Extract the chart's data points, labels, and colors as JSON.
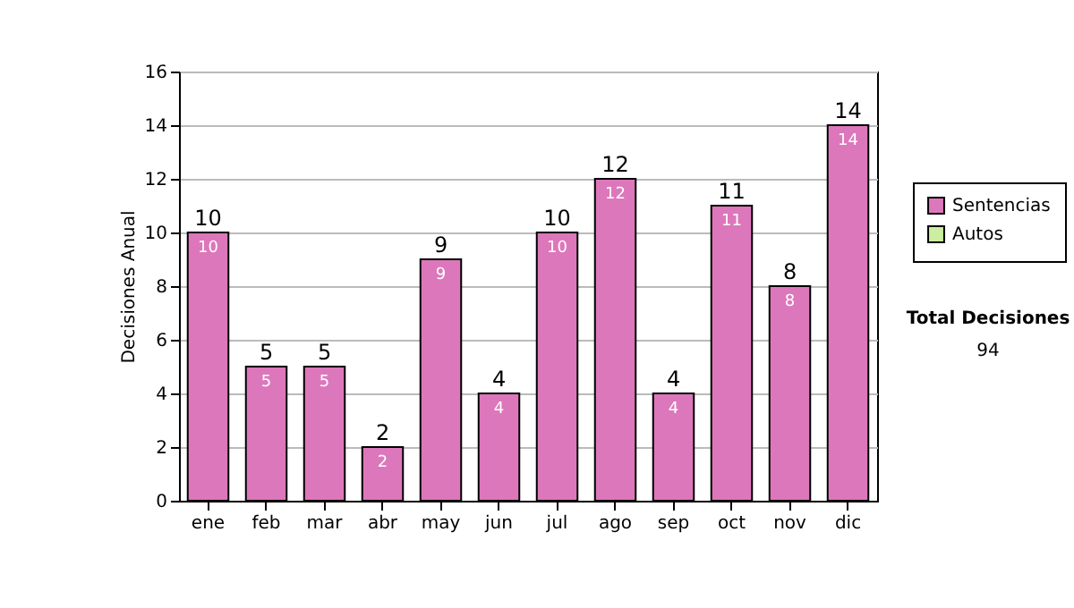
{
  "chart_data": {
    "type": "bar",
    "stacked": true,
    "ylabel": "Decisiones Anual",
    "categories": [
      "ene",
      "feb",
      "mar",
      "abr",
      "may",
      "jun",
      "jul",
      "ago",
      "sep",
      "oct",
      "nov",
      "dic"
    ],
    "series": [
      {
        "name": "Sentencias",
        "color": "#dd77bb",
        "values": [
          10,
          5,
          5,
          2,
          9,
          4,
          10,
          12,
          4,
          11,
          8,
          14
        ]
      },
      {
        "name": "Autos",
        "color": "#cceea0",
        "values": [
          null,
          null,
          null,
          null,
          null,
          null,
          null,
          null,
          null,
          null,
          null,
          null
        ]
      }
    ],
    "totals": [
      "10",
      "5",
      "5",
      "2",
      "9",
      "4",
      "10",
      "12",
      "4",
      "11",
      "8",
      "14"
    ],
    "data_labels": true,
    "ylim": [
      0,
      16
    ],
    "yticks": [
      0,
      2,
      4,
      6,
      8,
      10,
      12,
      14,
      16
    ],
    "grid": "y",
    "legend": "right",
    "annotations": [
      "Total Decisiones",
      "94"
    ]
  }
}
